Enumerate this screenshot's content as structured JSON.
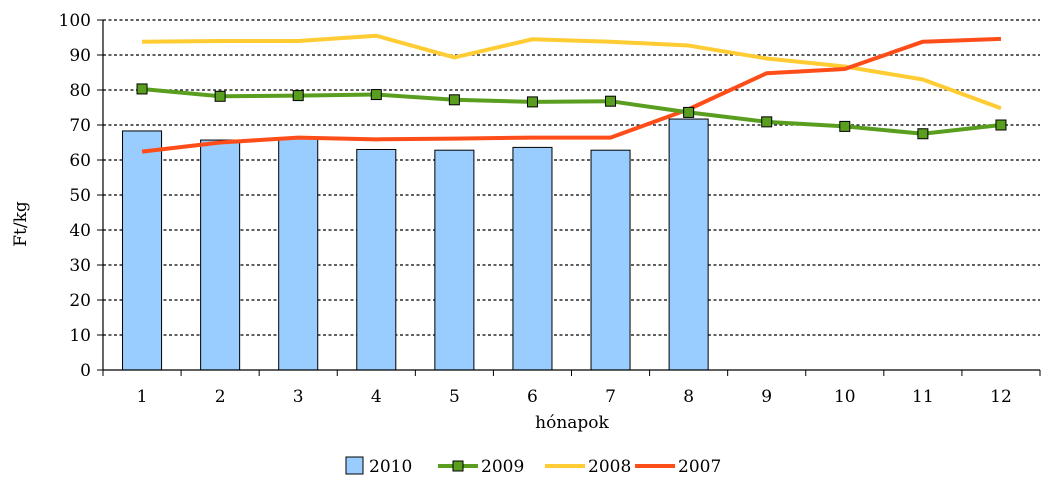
{
  "chart_data": {
    "type": "bar",
    "title": "",
    "xlabel": "hónapok",
    "ylabel": "Ft/kg",
    "ylim": [
      0,
      100
    ],
    "y_ticks": [
      0,
      10,
      20,
      30,
      40,
      50,
      60,
      70,
      80,
      90,
      100
    ],
    "categories": [
      "1",
      "2",
      "3",
      "4",
      "5",
      "6",
      "7",
      "8",
      "9",
      "10",
      "11",
      "12"
    ],
    "grid": "horizontal-dotted",
    "legend_position": "bottom",
    "series": [
      {
        "name": "2010",
        "kind": "bar",
        "color": "#99ccff",
        "values": [
          68.3,
          65.7,
          66.3,
          63.0,
          62.8,
          63.6,
          62.8,
          71.7,
          null,
          null,
          null,
          null
        ]
      },
      {
        "name": "2009",
        "kind": "line",
        "marker": "square",
        "color": "#5a9e1f",
        "values": [
          80.3,
          78.2,
          78.4,
          78.7,
          77.2,
          76.6,
          76.8,
          73.6,
          70.9,
          69.6,
          67.5,
          70.0
        ]
      },
      {
        "name": "2008",
        "kind": "line",
        "color": "#ffcc33",
        "values": [
          93.8,
          94.0,
          94.0,
          95.5,
          89.3,
          94.5,
          93.8,
          92.7,
          89.0,
          86.7,
          83.0,
          74.8
        ]
      },
      {
        "name": "2007",
        "kind": "line",
        "color": "#ff4d1a",
        "values": [
          62.4,
          65.0,
          66.4,
          65.9,
          66.1,
          66.4,
          66.4,
          74.5,
          84.8,
          86.0,
          93.8,
          94.6
        ]
      }
    ]
  }
}
